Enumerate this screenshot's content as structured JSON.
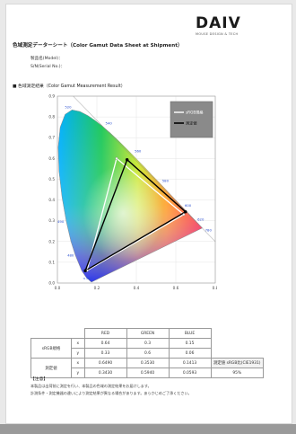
{
  "logo": {
    "text": "DAIV",
    "tagline": "MOUSE DESIGN & TECH"
  },
  "document": {
    "title": "色域測定データーシート（Color Gamut Data Sheet at Shipment）",
    "model_label": "製品名(Model)：",
    "serial_label": "S/N(Serial No.)：",
    "section_label": "■ 色域測定結果（Color Gamut Measurement Result）"
  },
  "chart_data": {
    "type": "scatter",
    "title": "",
    "xlabel": "",
    "ylabel": "",
    "xlim": [
      0.0,
      0.8
    ],
    "ylim": [
      0.0,
      0.9
    ],
    "x_ticks": [
      "0.0",
      "0.2",
      "0.4",
      "0.6",
      "0.8"
    ],
    "y_ticks": [
      "0.0",
      "0.1",
      "0.2",
      "0.3",
      "0.4",
      "0.5",
      "0.6",
      "0.7",
      "0.8",
      "0.9"
    ],
    "grid": true,
    "legend_position": "top-right",
    "spectral_locus_labels": [
      "520",
      "540",
      "560",
      "580",
      "600",
      "620",
      "780",
      "490",
      "480",
      "<380"
    ],
    "series": [
      {
        "name": "sRGB規格",
        "color": "#ffffff",
        "points": [
          {
            "x": 0.64,
            "y": 0.33
          },
          {
            "x": 0.3,
            "y": 0.6
          },
          {
            "x": 0.15,
            "y": 0.06
          }
        ]
      },
      {
        "name": "測定値",
        "color": "#000000",
        "points": [
          {
            "x": 0.649,
            "y": 0.343
          },
          {
            "x": 0.353,
            "y": 0.594
          },
          {
            "x": 0.1413,
            "y": 0.0593
          }
        ]
      }
    ]
  },
  "table": {
    "col_headers": [
      "RED",
      "GREEN",
      "BLUE"
    ],
    "rows": [
      {
        "label": "sRGB規格",
        "sub": [
          {
            "axis": "x",
            "values": [
              "0.64",
              "0.3",
              "0.15"
            ]
          },
          {
            "axis": "y",
            "values": [
              "0.33",
              "0.6",
              "0.06"
            ]
          }
        ]
      },
      {
        "label": "測定値",
        "sub": [
          {
            "axis": "x",
            "values": [
              "0.6490",
              "0.3530",
              "0.1413"
            ]
          },
          {
            "axis": "y",
            "values": [
              "0.3430",
              "0.5940",
              "0.0593"
            ]
          }
        ]
      }
    ],
    "coverage_label": "測定値 sRGB比(CIE1931)",
    "coverage_value": "95%"
  },
  "notes": {
    "heading": "【注意】",
    "lines": [
      "本製品は出荷前に測定を行い、本製品の色域の測定結果をお届けします。",
      "計測条件・測定機器の違いにより測定結果が異なる場合があります。あらかじめご了承ください。"
    ]
  }
}
